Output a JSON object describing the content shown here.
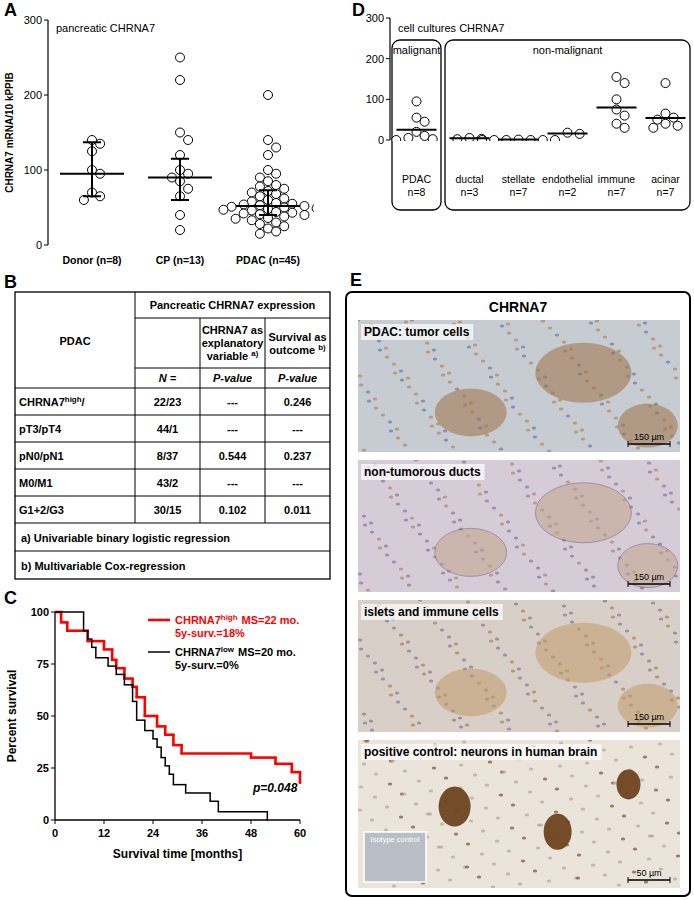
{
  "chart_data": [
    {
      "panel_label": "A",
      "type": "scatter",
      "title": "pancreatic CHRNA7",
      "y_label": "CHRNA7 mRNA/10 kPPIB",
      "categories": [
        "Donor (n=8)",
        "CP (n=13)",
        "PDAC (n=45)"
      ],
      "points": [
        [
          140,
          135,
          125,
          100,
          95,
          70,
          65,
          60
        ],
        [
          250,
          220,
          150,
          140,
          120,
          100,
          95,
          90,
          85,
          75,
          65,
          40,
          20
        ],
        [
          200,
          140,
          130,
          120,
          100,
          95,
          90,
          85,
          80,
          78,
          75,
          72,
          70,
          68,
          65,
          62,
          60,
          58,
          56,
          55,
          54,
          53,
          52,
          51,
          50,
          49,
          48,
          47,
          46,
          45,
          44,
          43,
          42,
          41,
          40,
          38,
          36,
          35,
          33,
          30,
          28,
          25,
          22,
          18,
          15
        ]
      ],
      "center": [
        95,
        90,
        52
      ],
      "whisker_low": [
        65,
        60,
        40
      ],
      "whisker_high": [
        137,
        115,
        73
      ],
      "color": "#000000",
      "marker": "open-circle",
      "ylim": [
        0,
        300
      ],
      "yticks": [
        0,
        100,
        200,
        300
      ]
    },
    {
      "panel_label": "C",
      "type": "line",
      "line_style": "step",
      "x_label": "Survival time [months]",
      "y_label": "Percent survival",
      "legend": "top-right",
      "series": [
        {
          "name": "CHRNA7high",
          "legend_text": [
            "MS=22 mo.",
            "5y-surv.=18%"
          ],
          "color": "#ff0000",
          "x": [
            0,
            1.5,
            3,
            8,
            12,
            14,
            15,
            17,
            19,
            20,
            22,
            25,
            27,
            29,
            31,
            48,
            54,
            58,
            60
          ],
          "values": [
            100,
            95,
            91,
            86,
            82,
            77,
            73,
            68,
            64,
            59,
            50,
            45,
            41,
            36,
            32,
            30,
            27,
            23,
            18
          ]
        },
        {
          "name": "CHRNA7low",
          "legend_text": [
            "MS=20 mo.",
            "5y-surv.=0%"
          ],
          "color": "#000000",
          "x": [
            0,
            7,
            8,
            9,
            10,
            13,
            15,
            17,
            19,
            20,
            22,
            24,
            25,
            26,
            27,
            28,
            29,
            32,
            38,
            40,
            52
          ],
          "values": [
            100,
            91,
            87,
            83,
            78,
            74,
            70,
            65,
            57,
            48,
            43,
            39,
            35,
            30,
            26,
            22,
            17,
            13,
            9,
            4,
            0
          ]
        }
      ],
      "annotation": "p=0.048",
      "xlim": [
        0,
        60
      ],
      "xticks": [
        0,
        12,
        24,
        36,
        48,
        60
      ],
      "ylim": [
        0,
        100
      ],
      "yticks": [
        0,
        25,
        50,
        75,
        100
      ]
    },
    {
      "panel_label": "D",
      "type": "scatter",
      "title": "cell cultures CHRNA7",
      "categories": [
        "PDAC",
        "ductal",
        "stellate",
        "endothelial",
        "immune",
        "acinar"
      ],
      "n_labels": [
        "n=8",
        "n=3",
        "n=7",
        "n=2",
        "n=7",
        "n=7"
      ],
      "group_boxes": [
        {
          "label": "malignant",
          "from": 0,
          "to": 0
        },
        {
          "label": "non-malignant",
          "from": 1,
          "to": 5
        }
      ],
      "points": [
        [
          95,
          55,
          45,
          20,
          10,
          5,
          2,
          0
        ],
        [
          5,
          3,
          2
        ],
        [
          1,
          0,
          0,
          0,
          0,
          0,
          0
        ],
        [
          15,
          18
        ],
        [
          155,
          140,
          100,
          75,
          60,
          40,
          30
        ],
        [
          140,
          65,
          55,
          50,
          40,
          35,
          30
        ]
      ],
      "center": [
        25,
        4,
        1,
        16,
        80,
        54
      ],
      "color": "#000000",
      "marker": "open-circle",
      "ylim": [
        0,
        300
      ],
      "yticks": [
        0,
        100,
        200,
        300
      ]
    }
  ],
  "table": {
    "panel_label": "B",
    "corner": "PDAC",
    "group_header": "Pancreatic CHRNA7 expression",
    "column_headers": [
      [
        [
          "CHRNA7 as"
        ],
        [
          "explanatory"
        ],
        [
          "variable ",
          {
            "sup": "a)"
          }
        ]
      ],
      [
        [
          "Survival as"
        ],
        [
          "outcome ",
          {
            "sup": "b)"
          }
        ]
      ]
    ],
    "subheaders": [
      "N =",
      "P-value",
      "P-value"
    ],
    "rows": [
      {
        "label": [
          "CHRNA7",
          {
            "sup": "high"
          },
          "/",
          ""
        ],
        "cells": [
          "22/23",
          "---",
          "0.246"
        ]
      },
      {
        "label": [
          "pT3/pT4"
        ],
        "cells": [
          "44/1",
          "---",
          "---"
        ]
      },
      {
        "label": [
          "pN0/pN1"
        ],
        "cells": [
          "8/37",
          "0.544",
          "0.237"
        ]
      },
      {
        "label": [
          "M0/M1"
        ],
        "cells": [
          "43/2",
          "---",
          "---"
        ]
      },
      {
        "label": [
          "G1+2/G3"
        ],
        "cells": [
          "30/15",
          "0.102",
          "0.011"
        ]
      }
    ],
    "footnotes": [
      "a) Univariable binary logistic regression",
      "b) Multivariable Cox-regression"
    ]
  },
  "images": {
    "panel_label": "E",
    "title": "CHRNA7",
    "panels": [
      {
        "label": "PDAC: tumor cells",
        "scale_bar": "150 µm"
      },
      {
        "label": "non-tumorous  ducts",
        "scale_bar": "150 µm"
      },
      {
        "label": "islets and immune cells",
        "scale_bar": "150 µm"
      },
      {
        "label": "positive control: neurons in human brain",
        "scale_bar": "50 µm",
        "inset": "Isotype control"
      }
    ]
  }
}
